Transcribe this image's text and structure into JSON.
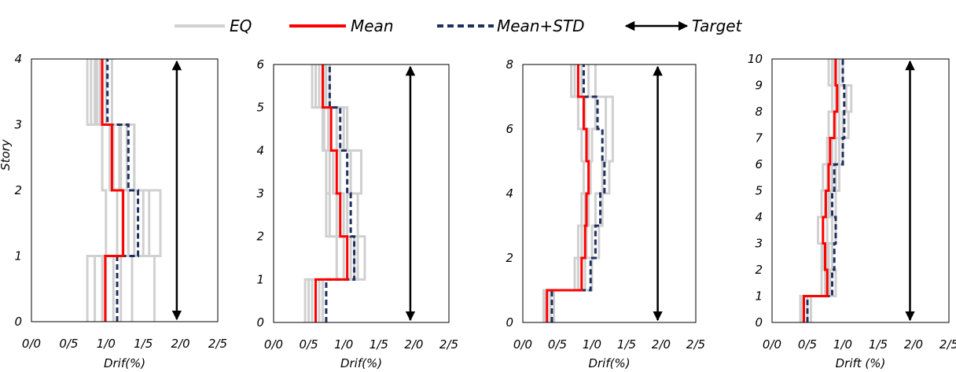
{
  "legend": {
    "items": [
      {
        "label": "EQ",
        "color": "#d0d0d0",
        "style": "solid"
      },
      {
        "label": "Mean",
        "color": "#ff0000",
        "style": "solid"
      },
      {
        "label": "Mean+STD",
        "color": "#1f2f5f",
        "style": "dashed"
      },
      {
        "label": "Target",
        "color": "#000000",
        "style": "double-arrow"
      }
    ]
  },
  "chart_data": [
    {
      "type": "line",
      "ylabel": "Story",
      "xlabel": "Drif(%)",
      "xlim": [
        0,
        2.5
      ],
      "ylim": [
        0,
        4
      ],
      "xtick_labels": [
        "0/0",
        "0/5",
        "1/0",
        "1/5",
        "2/0",
        "2/5"
      ],
      "ytick_labels": [
        "0",
        "1",
        "2",
        "3",
        "4"
      ],
      "target": 1.95,
      "series": [
        {
          "name": "Mean",
          "values": [
            0.99,
            1.23,
            1.08,
            0.95
          ]
        },
        {
          "name": "Mean+STD",
          "values": [
            1.15,
            1.43,
            1.3,
            1.02
          ]
        },
        {
          "name": "EQ",
          "values": [
            [
              0.75,
              1.0,
              0.95,
              0.75
            ],
            [
              1.0,
              1.5,
              1.2,
              0.88
            ],
            [
              1.2,
              1.38,
              1.38,
              1.08
            ],
            [
              0.85,
              1.15,
              1.05,
              0.8
            ],
            [
              1.35,
              1.73,
              1.38,
              0.95
            ],
            [
              1.65,
              1.58,
              1.28,
              1.0
            ],
            [
              0.95,
              1.3,
              1.18,
              0.92
            ],
            [
              1.1,
              1.22,
              1.1,
              0.85
            ]
          ]
        }
      ]
    },
    {
      "type": "line",
      "ylabel": "",
      "xlabel": "Drif(%)",
      "xlim": [
        0,
        2.5
      ],
      "ylim": [
        0,
        6
      ],
      "xtick_labels": [
        "0/0",
        "0/5",
        "1/0",
        "1/5",
        "2/0",
        "2/5"
      ],
      "ytick_labels": [
        "0",
        "1",
        "2",
        "3",
        "4",
        "5",
        "6"
      ],
      "target": 1.95,
      "series": [
        {
          "name": "Mean",
          "values": [
            0.6,
            1.05,
            0.95,
            0.9,
            0.82,
            0.7
          ]
        },
        {
          "name": "Mean+STD",
          "values": [
            0.75,
            1.15,
            1.1,
            1.05,
            0.95,
            0.8
          ]
        },
        {
          "name": "EQ",
          "values": [
            [
              0.5,
              0.9,
              0.8,
              0.75,
              0.7,
              0.6
            ],
            [
              0.7,
              1.3,
              1.2,
              1.1,
              1.0,
              0.8
            ],
            [
              0.55,
              1.0,
              0.9,
              0.85,
              0.78,
              0.65
            ],
            [
              0.65,
              1.15,
              1.05,
              1.25,
              1.05,
              0.75
            ],
            [
              0.45,
              1.1,
              0.75,
              0.8,
              0.72,
              0.55
            ],
            [
              0.6,
              1.2,
              1.0,
              0.95,
              0.9,
              0.72
            ]
          ]
        }
      ]
    },
    {
      "type": "line",
      "ylabel": "",
      "xlabel": "Drif(%)",
      "xlim": [
        0,
        2.5
      ],
      "ylim": [
        0,
        8
      ],
      "xtick_labels": [
        "0/0",
        "0/5",
        "1/0",
        "1/5",
        "2/0",
        "2/5"
      ],
      "ytick_labels": [
        "0",
        "",
        "2",
        "",
        "4",
        "",
        "6",
        "",
        "8"
      ],
      "target": 1.95,
      "series": [
        {
          "name": "Mean",
          "values": [
            0.35,
            0.85,
            0.9,
            0.92,
            0.95,
            0.92,
            0.88,
            0.8
          ]
        },
        {
          "name": "Mean+STD",
          "values": [
            0.42,
            0.98,
            1.05,
            1.12,
            1.18,
            1.15,
            1.08,
            0.88
          ]
        },
        {
          "name": "EQ",
          "values": [
            [
              0.3,
              0.8,
              0.85,
              0.9,
              0.95,
              1.0,
              1.05,
              0.75
            ],
            [
              0.4,
              0.9,
              1.0,
              1.05,
              1.15,
              1.2,
              1.2,
              0.95
            ],
            [
              0.35,
              0.75,
              0.8,
              0.85,
              0.88,
              0.85,
              0.8,
              0.7
            ],
            [
              0.45,
              1.0,
              1.1,
              1.15,
              1.25,
              1.3,
              1.3,
              1.05
            ],
            [
              0.33,
              0.85,
              0.92,
              0.95,
              0.98,
              0.95,
              0.9,
              0.85
            ]
          ]
        }
      ]
    },
    {
      "type": "line",
      "ylabel": "",
      "xlabel": "Drift (%)",
      "xlim": [
        0,
        2.5
      ],
      "ylim": [
        0,
        10
      ],
      "xtick_labels": [
        "0/0",
        "0/5",
        "1/0",
        "1/5",
        "2/0",
        "2/5"
      ],
      "ytick_labels": [
        "0",
        "1",
        "2",
        "3",
        "4",
        "5",
        "6",
        "7",
        "8",
        "9",
        "10"
      ],
      "target": 1.95,
      "series": [
        {
          "name": "Mean",
          "values": [
            0.45,
            0.78,
            0.75,
            0.72,
            0.76,
            0.8,
            0.82,
            0.88,
            0.92,
            0.9
          ]
        },
        {
          "name": "Mean+STD",
          "values": [
            0.5,
            0.85,
            0.88,
            0.9,
            0.85,
            0.88,
            1.0,
            1.02,
            1.02,
            1.0
          ]
        },
        {
          "name": "EQ",
          "values": [
            [
              0.4,
              0.7,
              0.7,
              0.65,
              0.7,
              0.72,
              0.78,
              0.8,
              0.85,
              0.8
            ],
            [
              0.55,
              0.9,
              0.85,
              0.85,
              0.82,
              0.9,
              0.95,
              1.0,
              1.05,
              1.0
            ],
            [
              0.45,
              0.75,
              0.8,
              0.9,
              0.8,
              0.85,
              0.9,
              1.08,
              1.12,
              0.95
            ],
            [
              0.5,
              0.82,
              0.78,
              0.78,
              0.9,
              0.95,
              1.0,
              0.95,
              0.95,
              0.88
            ],
            [
              0.42,
              0.8,
              0.72,
              0.72,
              0.75,
              0.78,
              0.85,
              0.9,
              0.9,
              0.85
            ]
          ]
        }
      ]
    }
  ]
}
